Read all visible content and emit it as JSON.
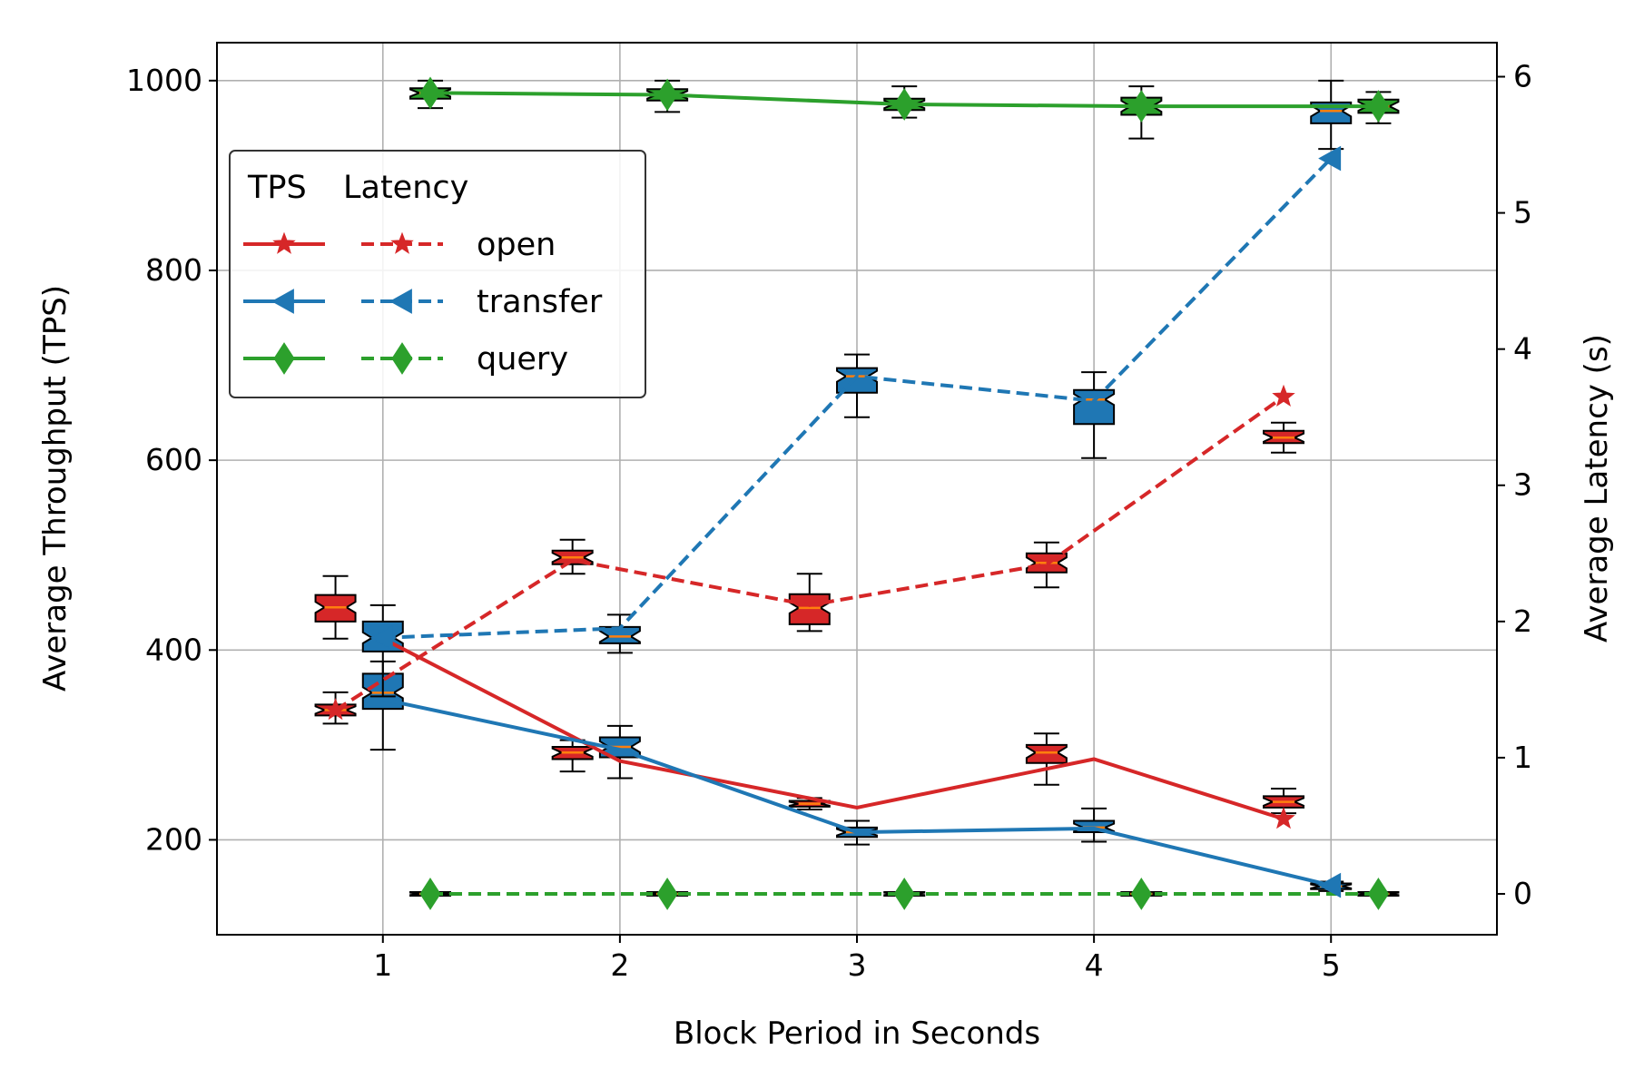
{
  "chart_data": {
    "type": "line",
    "xlabel": "Block Period in Seconds",
    "ylabel_left": "Average Throughput (TPS)",
    "ylabel_right": "Average Latency (s)",
    "x": [
      1,
      2,
      3,
      4,
      5
    ],
    "xlim": [
      0.3,
      5.7
    ],
    "ylim_left": [
      100,
      1040
    ],
    "ylim_right": [
      -0.3,
      6.25
    ],
    "xticks": [
      "1",
      "2",
      "3",
      "4",
      "5"
    ],
    "yticks_left": [
      "200",
      "400",
      "600",
      "800",
      "1000"
    ],
    "yticks_right": [
      "0",
      "1",
      "2",
      "3",
      "4",
      "5",
      "6"
    ],
    "grid": true,
    "legend": {
      "position": "upper-left",
      "header_tps": "TPS",
      "header_latency": "Latency",
      "entries": [
        "open",
        "transfer",
        "query"
      ]
    },
    "series": [
      {
        "name": "open",
        "color": "#d62728",
        "marker": "star",
        "axis": "left",
        "style": "solid",
        "x": [
          1,
          2,
          3,
          4,
          4.8
        ],
        "values": [
          412,
          283,
          234,
          285,
          222
        ]
      },
      {
        "name": "open",
        "color": "#d62728",
        "marker": "star",
        "axis": "right",
        "style": "dashed",
        "x": [
          0.8,
          1.8,
          2.8,
          3.8,
          4.8
        ],
        "values": [
          1.35,
          2.45,
          2.12,
          2.42,
          3.65
        ]
      },
      {
        "name": "transfer",
        "color": "#1f77b4",
        "marker": "triangle-left",
        "axis": "left",
        "style": "solid",
        "x": [
          1,
          2,
          3,
          4,
          5
        ],
        "values": [
          348,
          295,
          208,
          212,
          152
        ]
      },
      {
        "name": "transfer",
        "color": "#1f77b4",
        "marker": "triangle-left",
        "axis": "right",
        "style": "dashed",
        "x": [
          1,
          2,
          3,
          4,
          5
        ],
        "values": [
          1.88,
          1.95,
          3.8,
          3.62,
          5.4
        ]
      },
      {
        "name": "query",
        "color": "#2ca02c",
        "marker": "diamond",
        "axis": "left",
        "style": "solid",
        "x": [
          1.2,
          2.2,
          3.2,
          4.2,
          5.2
        ],
        "values": [
          987,
          985,
          975,
          973,
          973
        ]
      },
      {
        "name": "query",
        "color": "#2ca02c",
        "marker": "diamond",
        "axis": "right",
        "style": "dashed",
        "x": [
          1.2,
          2.2,
          3.2,
          4.2,
          5.2
        ],
        "values": [
          0,
          0,
          0,
          0,
          0
        ]
      }
    ],
    "boxplots": [
      {
        "x": 0.8,
        "axis": "left",
        "color": "#d62728",
        "q1": 430,
        "median": 445,
        "q3": 458,
        "whislo": 412,
        "whishi": 478
      },
      {
        "x": 1.8,
        "axis": "left",
        "color": "#d62728",
        "q1": 285,
        "median": 292,
        "q3": 298,
        "whislo": 272,
        "whishi": 305
      },
      {
        "x": 2.8,
        "axis": "left",
        "color": "#d62728",
        "q1": 235,
        "median": 238,
        "q3": 241,
        "whislo": 232,
        "whishi": 244
      },
      {
        "x": 3.8,
        "axis": "left",
        "color": "#d62728",
        "q1": 281,
        "median": 292,
        "q3": 300,
        "whislo": 258,
        "whishi": 312
      },
      {
        "x": 4.8,
        "axis": "left",
        "color": "#d62728",
        "q1": 234,
        "median": 240,
        "q3": 246,
        "whislo": 228,
        "whishi": 254
      },
      {
        "x": 0.8,
        "axis": "right",
        "color": "#d62728",
        "q1": 1.31,
        "median": 1.35,
        "q3": 1.39,
        "whislo": 1.25,
        "whishi": 1.48
      },
      {
        "x": 1.8,
        "axis": "right",
        "color": "#d62728",
        "q1": 2.42,
        "median": 2.47,
        "q3": 2.52,
        "whislo": 2.35,
        "whishi": 2.6
      },
      {
        "x": 2.8,
        "axis": "right",
        "color": "#d62728",
        "q1": 1.98,
        "median": 2.1,
        "q3": 2.2,
        "whislo": 1.93,
        "whishi": 2.35
      },
      {
        "x": 3.8,
        "axis": "right",
        "color": "#d62728",
        "q1": 2.36,
        "median": 2.43,
        "q3": 2.5,
        "whislo": 2.25,
        "whishi": 2.58
      },
      {
        "x": 4.8,
        "axis": "right",
        "color": "#d62728",
        "q1": 3.31,
        "median": 3.35,
        "q3": 3.4,
        "whislo": 3.24,
        "whishi": 3.46
      },
      {
        "x": 1,
        "axis": "left",
        "color": "#1f77b4",
        "q1": 338,
        "median": 355,
        "q3": 375,
        "whislo": 295,
        "whishi": 388
      },
      {
        "x": 2,
        "axis": "left",
        "color": "#1f77b4",
        "q1": 287,
        "median": 298,
        "q3": 308,
        "whislo": 265,
        "whishi": 320
      },
      {
        "x": 3,
        "axis": "left",
        "color": "#1f77b4",
        "q1": 203,
        "median": 208,
        "q3": 213,
        "whislo": 195,
        "whishi": 220
      },
      {
        "x": 4,
        "axis": "left",
        "color": "#1f77b4",
        "q1": 208,
        "median": 213,
        "q3": 220,
        "whislo": 198,
        "whishi": 233
      },
      {
        "x": 5,
        "axis": "left",
        "color": "#1f77b4",
        "q1": 148,
        "median": 151,
        "q3": 154,
        "whislo": 146,
        "whishi": 156
      },
      {
        "x": 1,
        "axis": "right",
        "color": "#1f77b4",
        "q1": 1.78,
        "median": 1.88,
        "q3": 2.0,
        "whislo": 1.45,
        "whishi": 2.12
      },
      {
        "x": 2,
        "axis": "right",
        "color": "#1f77b4",
        "q1": 1.84,
        "median": 1.89,
        "q3": 1.96,
        "whislo": 1.77,
        "whishi": 2.05
      },
      {
        "x": 3,
        "axis": "right",
        "color": "#1f77b4",
        "q1": 3.68,
        "median": 3.8,
        "q3": 3.86,
        "whislo": 3.5,
        "whishi": 3.96
      },
      {
        "x": 4,
        "axis": "right",
        "color": "#1f77b4",
        "q1": 3.45,
        "median": 3.63,
        "q3": 3.7,
        "whislo": 3.2,
        "whishi": 3.83
      },
      {
        "x": 5,
        "axis": "left",
        "color": "#1f77b4",
        "q1": 955,
        "median": 968,
        "q3": 977,
        "whislo": 928,
        "whishi": 1000
      },
      {
        "x": 1.2,
        "axis": "left",
        "color": "#2ca02c",
        "q1": 981,
        "median": 987,
        "q3": 992,
        "whislo": 971,
        "whishi": 1000
      },
      {
        "x": 2.2,
        "axis": "left",
        "color": "#2ca02c",
        "q1": 979,
        "median": 985,
        "q3": 991,
        "whislo": 967,
        "whishi": 1000
      },
      {
        "x": 3.2,
        "axis": "left",
        "color": "#2ca02c",
        "q1": 969,
        "median": 975,
        "q3": 981,
        "whislo": 961,
        "whishi": 994
      },
      {
        "x": 4.2,
        "axis": "left",
        "color": "#2ca02c",
        "q1": 964,
        "median": 973,
        "q3": 982,
        "whislo": 939,
        "whishi": 994
      },
      {
        "x": 5.2,
        "axis": "left",
        "color": "#2ca02c",
        "q1": 966,
        "median": 973,
        "q3": 980,
        "whislo": 955,
        "whishi": 988
      },
      {
        "x": 1.2,
        "axis": "right",
        "color": "#2ca02c",
        "q1": -0.01,
        "median": 0,
        "q3": 0.01,
        "whislo": -0.01,
        "whishi": 0.01
      },
      {
        "x": 2.2,
        "axis": "right",
        "color": "#2ca02c",
        "q1": -0.01,
        "median": 0,
        "q3": 0.01,
        "whislo": -0.01,
        "whishi": 0.01
      },
      {
        "x": 3.2,
        "axis": "right",
        "color": "#2ca02c",
        "q1": -0.01,
        "median": 0,
        "q3": 0.01,
        "whislo": -0.01,
        "whishi": 0.01
      },
      {
        "x": 4.2,
        "axis": "right",
        "color": "#2ca02c",
        "q1": -0.01,
        "median": 0,
        "q3": 0.01,
        "whislo": -0.01,
        "whishi": 0.01
      },
      {
        "x": 5.2,
        "axis": "right",
        "color": "#2ca02c",
        "q1": -0.01,
        "median": 0,
        "q3": 0.01,
        "whislo": -0.01,
        "whishi": 0.01
      }
    ]
  }
}
